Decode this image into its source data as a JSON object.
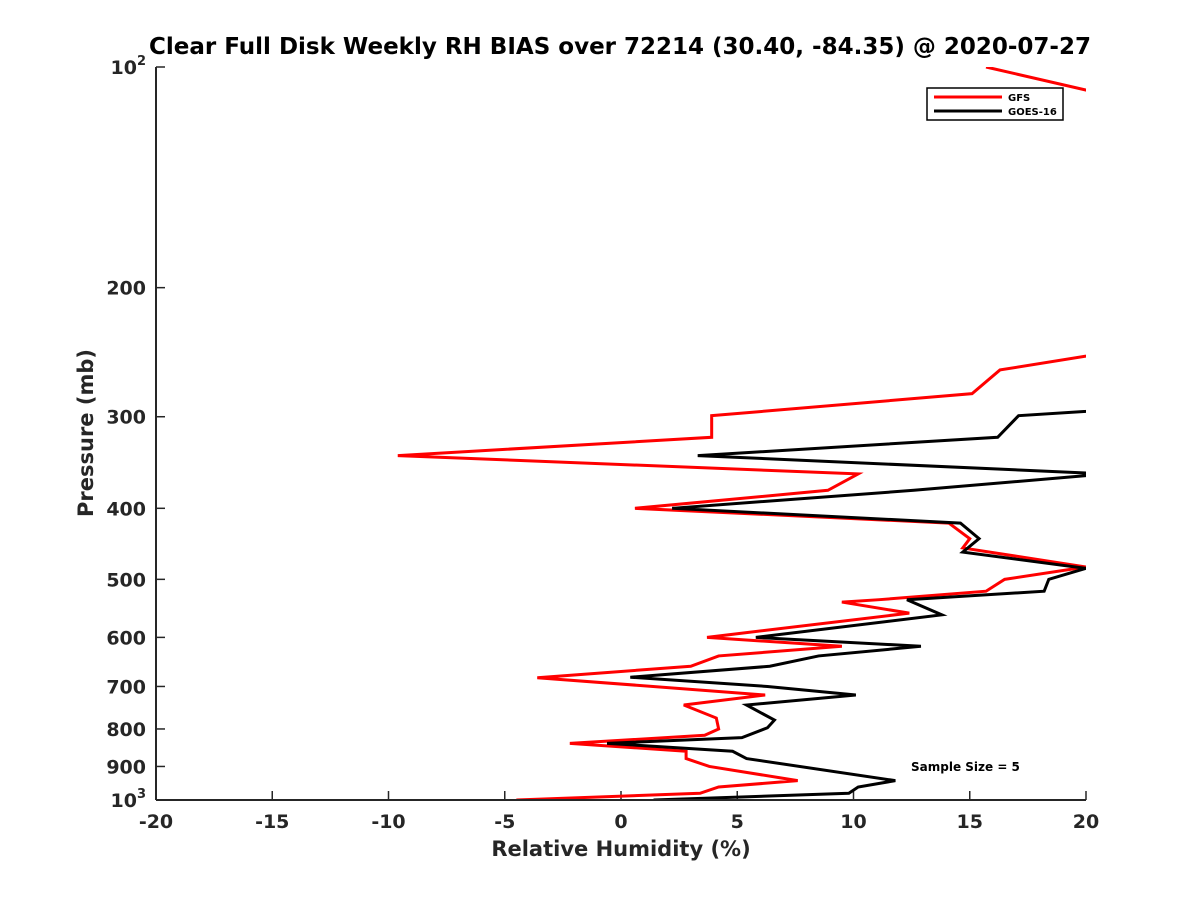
{
  "chart_data": {
    "type": "line",
    "title": "Clear Full Disk Weekly RH BIAS over 72214 (30.40, -84.35) @ 2020-07-27",
    "xlabel": "Relative Humidity (%)",
    "ylabel": "Pressure (mb)",
    "xlim": [
      -20,
      20
    ],
    "ylim": [
      100,
      1000
    ],
    "yscale": "log",
    "y_reversed": true,
    "xticks": [
      -20,
      -15,
      -10,
      -5,
      0,
      5,
      10,
      15,
      20
    ],
    "xtick_labels": [
      "-20",
      "-15",
      "-10",
      "-5",
      "0",
      "5",
      "10",
      "15",
      "20"
    ],
    "yticks": [
      100,
      200,
      300,
      400,
      500,
      600,
      700,
      800,
      900,
      1000
    ],
    "ytick_labels": [
      {
        "base": "10",
        "exp": "2"
      },
      "200",
      "300",
      "400",
      "500",
      "600",
      "700",
      "800",
      "900",
      {
        "base": "10",
        "exp": "3"
      }
    ],
    "legend": {
      "placement": "top-right",
      "entries": [
        "GFS",
        "GOES-16"
      ]
    },
    "annotation": "Sample Size = 5",
    "series": [
      {
        "name": "GFS",
        "color": "#ff0000",
        "points": [
          [
            15.7,
            100
          ],
          [
            24.0,
            115
          ],
          [
            24.0,
            230
          ],
          [
            20,
            248
          ],
          [
            16.3,
            259
          ],
          [
            15.1,
            279
          ],
          [
            3.9,
            299
          ],
          [
            3.9,
            320
          ],
          [
            -9.6,
            339
          ],
          [
            10.2,
            359
          ],
          [
            8.9,
            378
          ],
          [
            0.6,
            400
          ],
          [
            14.1,
            419
          ],
          [
            15.0,
            440
          ],
          [
            14.7,
            453
          ],
          [
            20,
            481
          ],
          [
            16.5,
            500
          ],
          [
            15.7,
            519
          ],
          [
            11.1,
            533
          ],
          [
            9.5,
            537
          ],
          [
            12.4,
            556
          ],
          [
            3.7,
            600
          ],
          [
            9.5,
            617
          ],
          [
            4.2,
            636
          ],
          [
            3.0,
            657
          ],
          [
            -3.6,
            681
          ],
          [
            6.2,
            719
          ],
          [
            2.7,
            742
          ],
          [
            4.1,
            773
          ],
          [
            4.2,
            800
          ],
          [
            3.6,
            816
          ],
          [
            -2.2,
            837
          ],
          [
            2.8,
            858
          ],
          [
            2.8,
            878
          ],
          [
            3.8,
            900
          ],
          [
            7.6,
            941
          ],
          [
            4.2,
            960
          ],
          [
            3.4,
            979
          ],
          [
            -4.5,
            1000
          ]
        ]
      },
      {
        "name": "GOES-16",
        "color": "#000000",
        "points": [
          [
            24.0,
            280
          ],
          [
            20,
            295
          ],
          [
            17.1,
            299
          ],
          [
            16.2,
            320
          ],
          [
            3.3,
            339
          ],
          [
            20,
            358
          ],
          [
            20,
            361
          ],
          [
            12.6,
            378
          ],
          [
            2.2,
            400
          ],
          [
            14.6,
            419
          ],
          [
            15.4,
            440
          ],
          [
            14.7,
            459
          ],
          [
            20,
            483
          ],
          [
            18.4,
            500
          ],
          [
            18.2,
            519
          ],
          [
            12.3,
            533
          ],
          [
            13.8,
            559
          ],
          [
            5.8,
            600
          ],
          [
            12.9,
            617
          ],
          [
            8.5,
            636
          ],
          [
            6.4,
            657
          ],
          [
            0.4,
            680
          ],
          [
            6.3,
            700
          ],
          [
            10.1,
            719
          ],
          [
            5.4,
            742
          ],
          [
            6.6,
            778
          ],
          [
            6.3,
            797
          ],
          [
            5.2,
            822
          ],
          [
            -0.6,
            837
          ],
          [
            4.8,
            858
          ],
          [
            5.4,
            878
          ],
          [
            11.8,
            941
          ],
          [
            10.2,
            960
          ],
          [
            9.8,
            979
          ],
          [
            1.4,
            1000
          ]
        ]
      }
    ]
  }
}
